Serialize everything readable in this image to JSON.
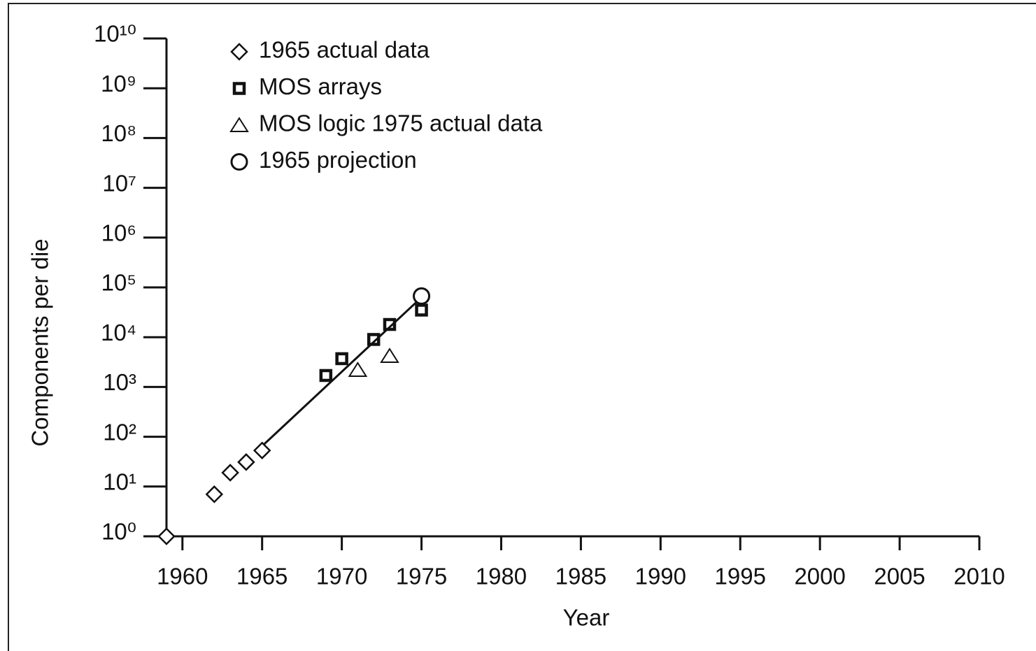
{
  "chart_data": {
    "type": "scatter",
    "x_label": "Year",
    "y_label": "Components per die",
    "ylog": true,
    "xlim": [
      1959,
      2010
    ],
    "ylim": [
      1,
      10000000000
    ],
    "xticks": [
      1960,
      1965,
      1970,
      1975,
      1980,
      1985,
      1990,
      1995,
      2000,
      2005,
      2010
    ],
    "yticks": [
      {
        "value": 1,
        "label": "10⁰"
      },
      {
        "value": 10,
        "label": "10¹"
      },
      {
        "value": 100,
        "label": "10²"
      },
      {
        "value": 1000,
        "label": "10³"
      },
      {
        "value": 10000,
        "label": "10⁴"
      },
      {
        "value": 100000,
        "label": "10⁵"
      },
      {
        "value": 1000000,
        "label": "10⁶"
      },
      {
        "value": 10000000,
        "label": "10⁷"
      },
      {
        "value": 100000000,
        "label": "10⁸"
      },
      {
        "value": 1000000000,
        "label": "10⁹"
      },
      {
        "value": 10000000000,
        "label": "10¹⁰"
      }
    ],
    "legend": "top-left",
    "series": [
      {
        "name": "1965 actual data",
        "marker": "diamond",
        "color": "#111111",
        "x": [
          1959,
          1962,
          1963,
          1964,
          1965
        ],
        "values": [
          1,
          7,
          19,
          31,
          53
        ]
      },
      {
        "name": "MOS arrays",
        "marker": "square",
        "color": "#111111",
        "x": [
          1969,
          1970,
          1972,
          1973,
          1975
        ],
        "values": [
          1700,
          3700,
          9000,
          18000,
          35000
        ]
      },
      {
        "name": "MOS logic 1975 actual data",
        "marker": "triangle",
        "color": "#111111",
        "x": [
          1971,
          1973
        ],
        "values": [
          2200,
          4200
        ]
      },
      {
        "name": "1965 projection",
        "marker": "circle",
        "color": "#111111",
        "x": [
          1975
        ],
        "values": [
          67000
        ]
      },
      {
        "marker": "line",
        "color": "#111111",
        "x": [
          1965,
          1975
        ],
        "values": [
          65,
          63000
        ]
      }
    ]
  }
}
